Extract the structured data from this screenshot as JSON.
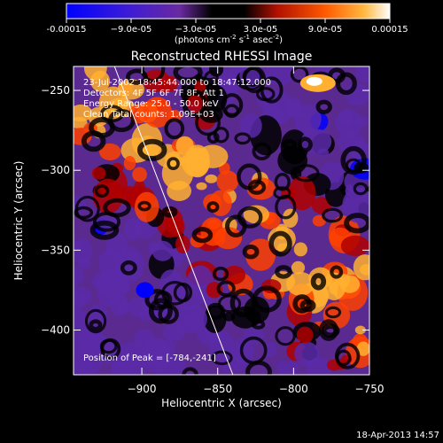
{
  "chart_data": {
    "type": "heatmap",
    "title": "Reconstructed RHESSI Image",
    "xlabel": "Heliocentric X (arcsec)",
    "ylabel": "Heliocentric Y (arcsec)",
    "xlim": [
      -945,
      -750
    ],
    "ylim": [
      -428,
      -235
    ],
    "x_ticks": [
      -900,
      -850,
      -800,
      -750
    ],
    "x_tick_labels": [
      "−900",
      "−850",
      "−800",
      "−750"
    ],
    "y_ticks": [
      -250,
      -300,
      -350,
      -400
    ],
    "y_tick_labels": [
      "−250",
      "−300",
      "−350",
      "−400"
    ],
    "colorbar": {
      "range": [
        -0.00015,
        0.00015
      ],
      "tick_labels": [
        "-0.00015",
        "−9.0e-05",
        "−3.0e-05",
        "3.0e-05",
        "9.0e-05",
        "0.00015"
      ],
      "units_prefix": "(photons cm",
      "units_exp1": "-2",
      "units_mid": " s",
      "units_exp2": "-1",
      "units_mid2": " asec",
      "units_exp3": "-2",
      "units_suffix": ")"
    },
    "annotations": {
      "time": "23-Jul-2002 18:45:44.000 to 18:47:12.000",
      "detectors": "Detectors: 4F 5F 6F 7F 8F, Att 1",
      "energy": "Energy Range: 25.0 - 50.0 keV",
      "clean": "Clean     Total counts: 1.09E+03",
      "peak": "Position of Peak = [-784,-241]"
    },
    "limb_line": [
      [
        -918,
        -235
      ],
      [
        -840,
        -428
      ]
    ],
    "peak_position": [
      -784,
      -241
    ],
    "colors": {
      "background": "#000000",
      "text": "#ffffff",
      "colormap": [
        "#0000ff",
        "#5a2aa8",
        "#000000",
        "#b00000",
        "#ff4000",
        "#ffb030",
        "#ffffff"
      ]
    }
  },
  "footer_date": "18-Apr-2013 14:57"
}
